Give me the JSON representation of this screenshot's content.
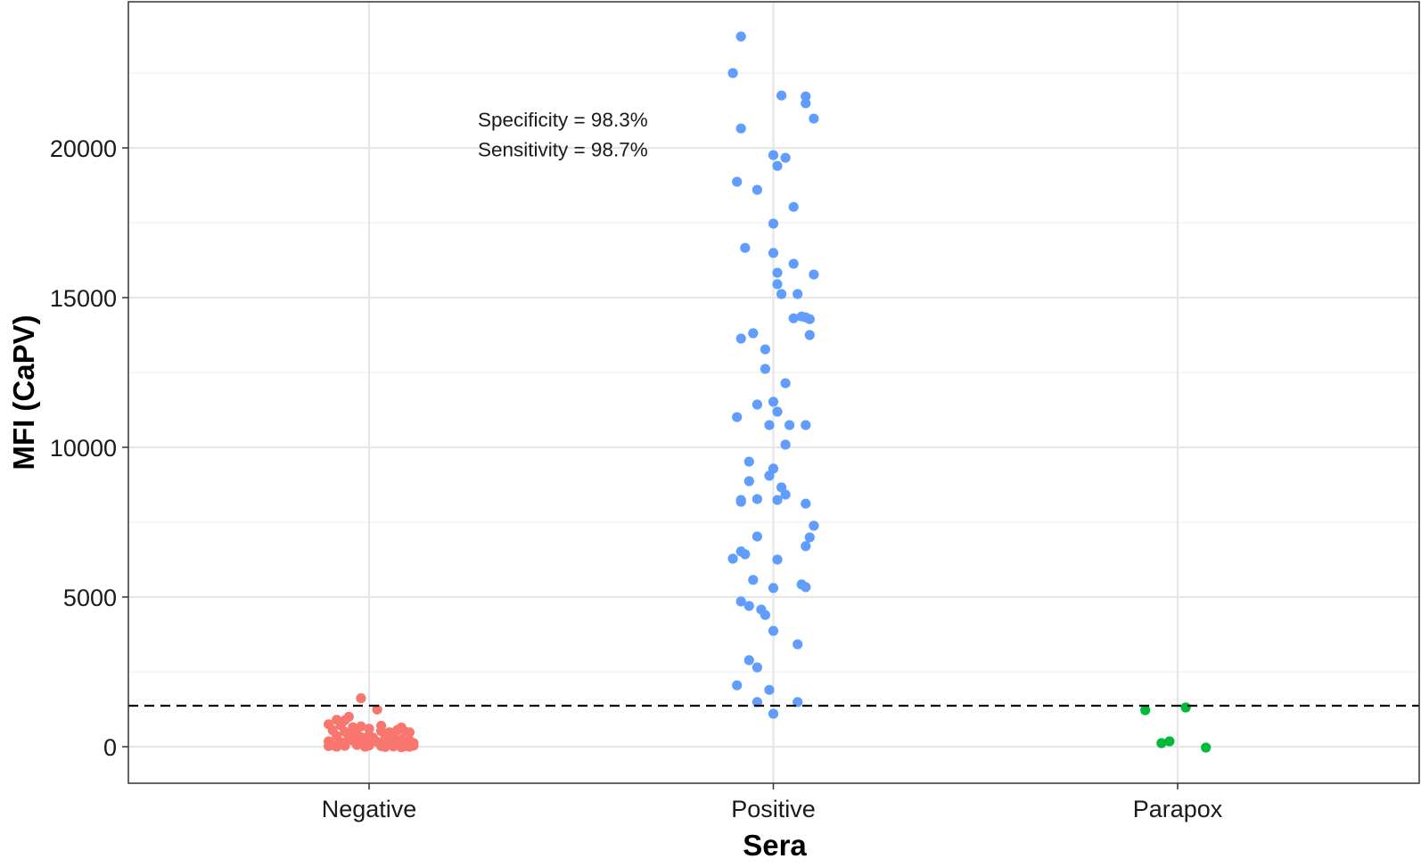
{
  "chart_data": {
    "type": "scatter",
    "subtype": "jittered strip plot",
    "title": "",
    "xlabel": "Sera",
    "ylabel": "MFI (CaPV)",
    "categories": [
      "Negative",
      "Positive",
      "Parapox"
    ],
    "ylim": [
      -1300,
      24800
    ],
    "yticks": [
      0,
      5000,
      10000,
      15000,
      20000
    ],
    "ytick_labels": [
      "0",
      "5000",
      "10000",
      "15000",
      "20000"
    ],
    "grid": true,
    "legend": "none",
    "threshold": {
      "value": 1370,
      "style": "dashed",
      "color": "#000000"
    },
    "annotations": [
      "Specificity = 98.3%",
      "Sensitivity = 98.7%"
    ],
    "annotation_position": {
      "category_offset": -0.5,
      "y": [
        20950,
        19950
      ]
    },
    "colors": {
      "Negative": "#F8766D",
      "Positive": "#619CFF",
      "Parapox": "#00BA38"
    },
    "series": [
      {
        "name": "Negative",
        "note": "dense cluster; values approximate",
        "points": [
          [
            -0.02,
            1620
          ],
          [
            0.02,
            1240
          ],
          [
            -0.08,
            900
          ],
          [
            -0.05,
            1000
          ],
          [
            -0.1,
            750
          ],
          [
            -0.07,
            720
          ],
          [
            -0.04,
            650
          ],
          [
            -0.09,
            550
          ],
          [
            -0.06,
            500
          ],
          [
            -0.03,
            580
          ],
          [
            0.0,
            600
          ],
          [
            0.03,
            520
          ],
          [
            0.05,
            480
          ],
          [
            0.07,
            560
          ],
          [
            0.09,
            500
          ],
          [
            0.1,
            480
          ],
          [
            -0.08,
            350
          ],
          [
            -0.05,
            300
          ],
          [
            -0.02,
            320
          ],
          [
            0.01,
            300
          ],
          [
            0.04,
            280
          ],
          [
            0.06,
            300
          ],
          [
            0.08,
            250
          ],
          [
            0.1,
            200
          ],
          [
            -0.1,
            180
          ],
          [
            -0.07,
            150
          ],
          [
            -0.04,
            200
          ],
          [
            -0.01,
            150
          ],
          [
            0.02,
            160
          ],
          [
            0.05,
            120
          ],
          [
            0.07,
            100
          ],
          [
            0.09,
            80
          ],
          [
            0.11,
            120
          ],
          [
            -0.09,
            50
          ],
          [
            -0.06,
            30
          ],
          [
            -0.03,
            60
          ],
          [
            0.0,
            40
          ],
          [
            0.03,
            20
          ],
          [
            0.06,
            10
          ],
          [
            0.09,
            20
          ],
          [
            0.11,
            40
          ],
          [
            -0.08,
            0
          ],
          [
            -0.01,
            0
          ],
          [
            0.04,
            -10
          ],
          [
            0.08,
            -20
          ],
          [
            -0.04,
            420
          ],
          [
            0.0,
            380
          ],
          [
            0.06,
            400
          ],
          [
            -0.06,
            880
          ],
          [
            0.01,
            250
          ],
          [
            0.1,
            0
          ],
          [
            -0.1,
            20
          ],
          [
            0.03,
            700
          ],
          [
            -0.02,
            680
          ],
          [
            0.08,
            640
          ]
        ]
      },
      {
        "name": "Positive",
        "points": [
          [
            -0.08,
            23720
          ],
          [
            -0.1,
            22500
          ],
          [
            0.02,
            21750
          ],
          [
            0.08,
            21720
          ],
          [
            0.08,
            21490
          ],
          [
            0.1,
            20980
          ],
          [
            -0.08,
            20650
          ],
          [
            0.0,
            19760
          ],
          [
            0.03,
            19670
          ],
          [
            0.01,
            19400
          ],
          [
            -0.09,
            18870
          ],
          [
            -0.04,
            18600
          ],
          [
            0.05,
            18030
          ],
          [
            0.0,
            17470
          ],
          [
            -0.07,
            16660
          ],
          [
            0.0,
            16490
          ],
          [
            0.05,
            16130
          ],
          [
            0.01,
            15830
          ],
          [
            0.1,
            15770
          ],
          [
            0.01,
            15450
          ],
          [
            0.02,
            15120
          ],
          [
            0.06,
            15120
          ],
          [
            0.05,
            14310
          ],
          [
            0.07,
            14370
          ],
          [
            0.08,
            14340
          ],
          [
            0.09,
            14280
          ],
          [
            -0.05,
            13810
          ],
          [
            -0.08,
            13630
          ],
          [
            0.09,
            13750
          ],
          [
            -0.02,
            13270
          ],
          [
            -0.02,
            12620
          ],
          [
            0.03,
            12140
          ],
          [
            -0.04,
            11430
          ],
          [
            0.0,
            11520
          ],
          [
            0.01,
            11190
          ],
          [
            -0.09,
            11010
          ],
          [
            -0.01,
            10740
          ],
          [
            0.04,
            10740
          ],
          [
            0.08,
            10740
          ],
          [
            0.03,
            10090
          ],
          [
            -0.06,
            9520
          ],
          [
            0.0,
            9290
          ],
          [
            -0.01,
            9050
          ],
          [
            -0.06,
            8870
          ],
          [
            0.02,
            8660
          ],
          [
            0.03,
            8420
          ],
          [
            -0.08,
            8240
          ],
          [
            -0.08,
            8180
          ],
          [
            -0.04,
            8270
          ],
          [
            0.01,
            8240
          ],
          [
            0.08,
            8120
          ],
          [
            0.1,
            7380
          ],
          [
            -0.04,
            7020
          ],
          [
            0.09,
            6990
          ],
          [
            0.08,
            6700
          ],
          [
            -0.08,
            6520
          ],
          [
            -0.07,
            6430
          ],
          [
            -0.1,
            6280
          ],
          [
            0.01,
            6250
          ],
          [
            -0.05,
            5570
          ],
          [
            0.0,
            5300
          ],
          [
            0.07,
            5420
          ],
          [
            0.08,
            5330
          ],
          [
            -0.08,
            4850
          ],
          [
            -0.06,
            4700
          ],
          [
            -0.03,
            4580
          ],
          [
            -0.02,
            4400
          ],
          [
            0.0,
            3870
          ],
          [
            0.06,
            3420
          ],
          [
            -0.06,
            2890
          ],
          [
            -0.04,
            2650
          ],
          [
            -0.09,
            2050
          ],
          [
            -0.01,
            1900
          ],
          [
            -0.04,
            1490
          ],
          [
            0.06,
            1490
          ],
          [
            0.0,
            1100
          ]
        ]
      },
      {
        "name": "Parapox",
        "points": [
          [
            -0.08,
            1220
          ],
          [
            0.02,
            1310
          ],
          [
            -0.04,
            120
          ],
          [
            -0.02,
            180
          ],
          [
            0.07,
            -30
          ]
        ]
      }
    ]
  }
}
